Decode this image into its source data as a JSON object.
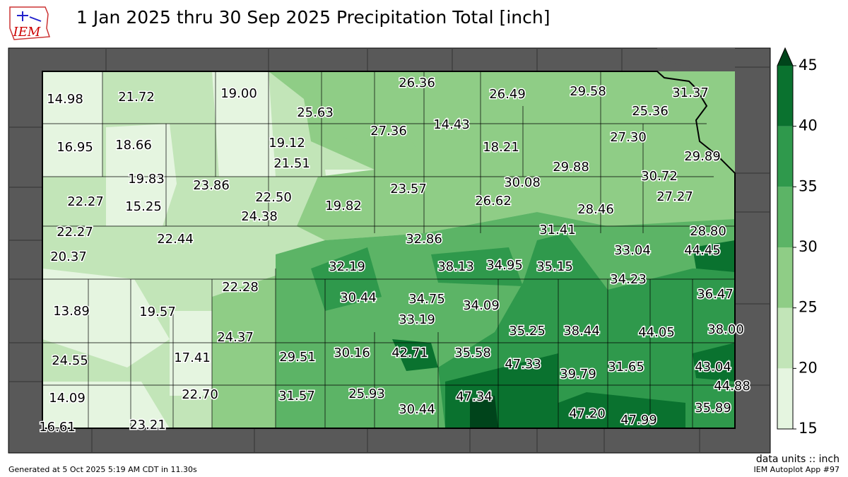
{
  "header": {
    "logo": "IEM",
    "title": "1 Jan 2025 thru 30 Sep 2025 Precipitation Total [inch]"
  },
  "stations": [
    "14.98",
    "21.72",
    "19.00",
    "25.63",
    "26.36",
    "26.49",
    "29.58",
    "31.37",
    "25.36",
    "27.36",
    "14.43",
    "18.21",
    "27.30",
    "29.89",
    "16.95",
    "18.66",
    "19.12",
    "21.51",
    "29.88",
    "19.83",
    "23.86",
    "30.08",
    "30.72",
    "22.27",
    "15.25",
    "22.50",
    "19.82",
    "23.57",
    "26.62",
    "27.27",
    "24.38",
    "28.46",
    "22.27",
    "31.41",
    "28.80",
    "22.44",
    "32.86",
    "20.37",
    "33.04",
    "44.45",
    "32.19",
    "38.13",
    "34.95",
    "35.15",
    "34.23",
    "22.28",
    "36.47",
    "30.44",
    "34.75",
    "34.09",
    "13.89",
    "19.57",
    "33.19",
    "35.25",
    "38.44",
    "44.05",
    "38.00",
    "24.37",
    "42.71",
    "30.16",
    "35.58",
    "29.51",
    "24.55",
    "17.41",
    "47.33",
    "31.65",
    "43.04",
    "39.79",
    "44.88",
    "22.70",
    "31.57",
    "25.93",
    "47.34",
    "14.09",
    "30.44",
    "35.89",
    "47.20",
    "47.99",
    "16.61",
    "23.21"
  ],
  "colorbar": {
    "range": [
      15,
      45
    ],
    "ticks": [
      15,
      20,
      25,
      30,
      35,
      40,
      45
    ],
    "colors": [
      "#e5f5e0",
      "#c2e5b8",
      "#8fcd86",
      "#5cb466",
      "#2f994c",
      "#0a722f",
      "#00441b"
    ]
  },
  "units": "data units :: inch",
  "footer": {
    "generated": "Generated at 5 Oct 2025 5:19 AM CDT in 11.30s",
    "app": "IEM Autoplot App #97"
  }
}
